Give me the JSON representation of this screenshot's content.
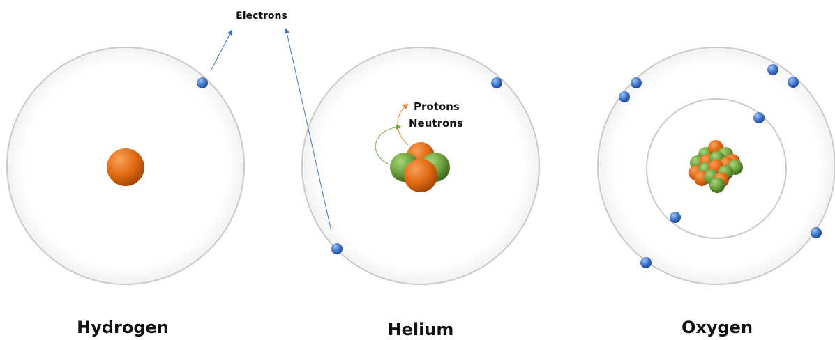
{
  "labels": {
    "electrons": "Electrons",
    "protons": "Protons",
    "neutrons": "Neutrons"
  },
  "atoms": [
    {
      "name": "Hydrogen"
    },
    {
      "name": "Helium"
    },
    {
      "name": "Oxygen"
    }
  ]
}
